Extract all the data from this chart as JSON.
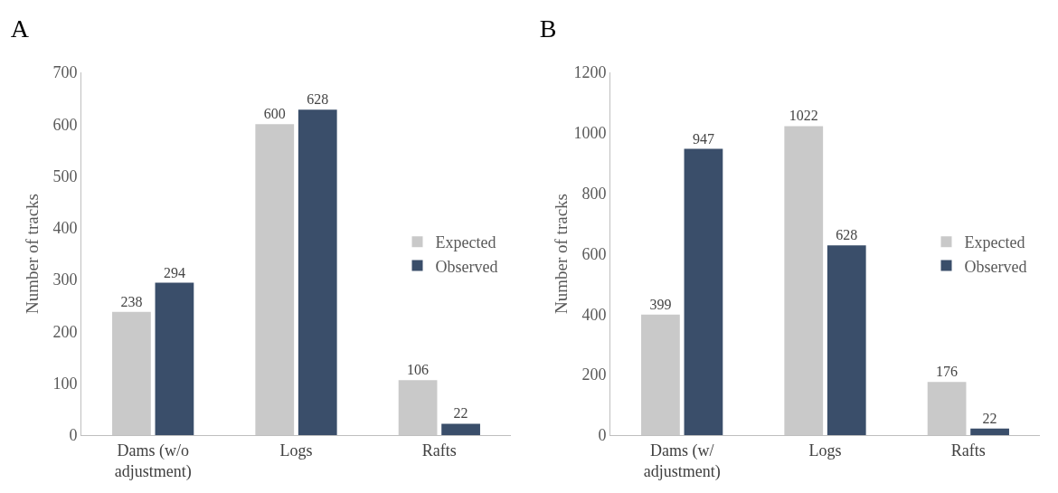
{
  "chart_data": [
    {
      "type": "bar",
      "title": "A",
      "ylabel": "Number of tracks",
      "categories": [
        "Dams (w/o\nadjustment)",
        "Logs",
        "Rafts"
      ],
      "series": [
        {
          "name": "Expected",
          "color": "#c9c9c9",
          "values": [
            238,
            600,
            106
          ]
        },
        {
          "name": "Observed",
          "color": "#3a4e6a",
          "values": [
            294,
            628,
            22
          ]
        }
      ],
      "ylim": [
        0,
        700
      ],
      "yticks": [
        0,
        100,
        200,
        300,
        400,
        500,
        600,
        700
      ],
      "grid": false,
      "legend": "right",
      "data_labels": true
    },
    {
      "type": "bar",
      "title": "B",
      "ylabel": "Number of tracks",
      "categories": [
        "Dams (w/\nadjustment)",
        "Logs",
        "Rafts"
      ],
      "series": [
        {
          "name": "Expected",
          "color": "#c9c9c9",
          "values": [
            399,
            1022,
            176
          ]
        },
        {
          "name": "Observed",
          "color": "#3a4e6a",
          "values": [
            947,
            628,
            22
          ]
        }
      ],
      "ylim": [
        0,
        1200
      ],
      "yticks": [
        0,
        200,
        400,
        600,
        800,
        1000,
        1200
      ],
      "grid": false,
      "legend": "right",
      "data_labels": true
    }
  ]
}
